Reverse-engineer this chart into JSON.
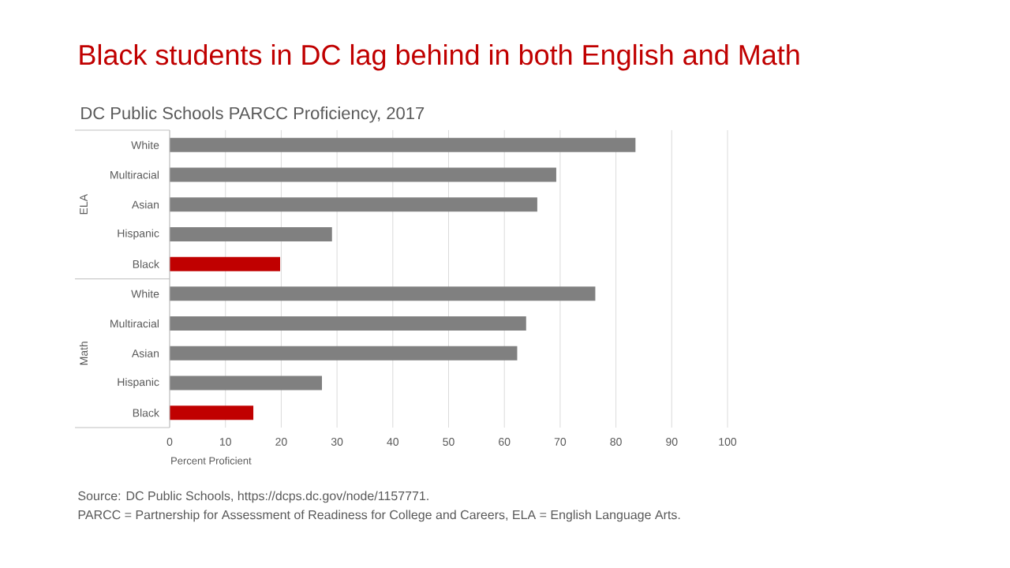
{
  "chart_data": {
    "type": "bar",
    "orientation": "horizontal",
    "title": "Black students in DC lag behind in both English and Math",
    "subtitle": "DC Public Schools PARCC Proficiency, 2017",
    "xlabel": "Percent Proficient",
    "categories": [
      "White",
      "Multiracial",
      "Asian",
      "Hispanic",
      "Black",
      "White",
      "Multiracial",
      "Asian",
      "Hispanic",
      "Black"
    ],
    "values": [
      83.5,
      69.3,
      65.9,
      29.1,
      19.8,
      76.3,
      63.9,
      62.3,
      27.3,
      15.0
    ],
    "colors": [
      "#808080",
      "#808080",
      "#808080",
      "#808080",
      "#c00000",
      "#808080",
      "#808080",
      "#808080",
      "#808080",
      "#c00000"
    ],
    "xlim": [
      0,
      100
    ],
    "xticks": [
      0,
      10,
      20,
      30,
      40,
      50,
      60,
      70,
      80,
      90,
      100
    ],
    "grid": "x",
    "annotations": [
      "ELA",
      "Math",
      "Source: DC Public Schools, https://dcps.dc.gov/node/1157771.",
      "PARCC = Partnership for Assessment of Readiness for College and Careers, ELA = English Language Arts."
    ]
  }
}
